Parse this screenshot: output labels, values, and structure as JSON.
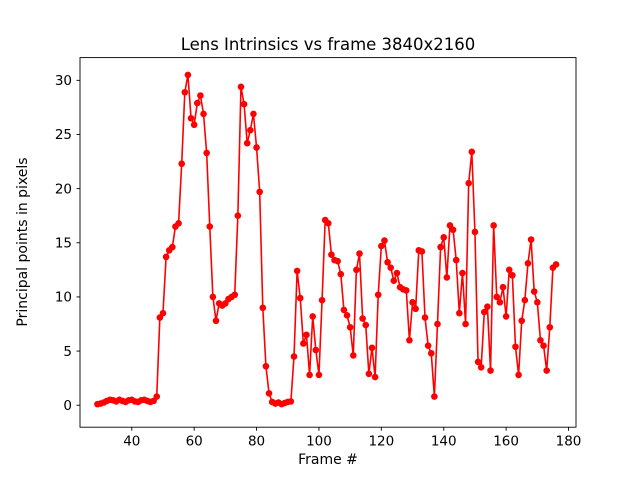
{
  "figure": {
    "background": "#ffffff",
    "plot_background": "#ffffff",
    "spine_color": "#000000",
    "tick_color": "#000000"
  },
  "chart_data": {
    "type": "line",
    "title": "Lens Intrinsics vs frame 3840x2160",
    "xlabel": "Frame #",
    "ylabel": "Principal points in pixels",
    "line_color": "#ff0000",
    "marker": "circle",
    "marker_color": "#ff0000",
    "grid": false,
    "legend_position": "none",
    "xlim": [
      23.4,
      182.4
    ],
    "ylim": [
      -2.03,
      32.1
    ],
    "xticks": [
      40,
      60,
      80,
      100,
      120,
      140,
      160,
      180
    ],
    "yticks": [
      0,
      5,
      10,
      15,
      20,
      25,
      30
    ],
    "x": [
      29,
      30,
      31,
      32,
      33,
      34,
      35,
      36,
      37,
      38,
      39,
      40,
      41,
      42,
      43,
      44,
      45,
      46,
      47,
      48,
      49,
      50,
      51,
      52,
      53,
      54,
      55,
      56,
      57,
      58,
      59,
      60,
      61,
      62,
      63,
      64,
      65,
      66,
      67,
      68,
      69,
      70,
      71,
      72,
      73,
      74,
      75,
      76,
      77,
      78,
      79,
      80,
      81,
      82,
      83,
      84,
      85,
      86,
      87,
      88,
      89,
      90,
      91,
      92,
      93,
      94,
      95,
      96,
      97,
      98,
      99,
      100,
      101,
      102,
      103,
      104,
      105,
      106,
      107,
      108,
      109,
      110,
      111,
      112,
      113,
      114,
      115,
      116,
      117,
      118,
      119,
      120,
      121,
      122,
      123,
      124,
      125,
      126,
      127,
      128,
      129,
      130,
      131,
      132,
      133,
      134,
      135,
      136,
      137,
      138,
      139,
      140,
      141,
      142,
      143,
      144,
      145,
      146,
      147,
      148,
      149,
      150,
      151,
      152,
      153,
      154,
      155,
      156,
      157,
      158,
      159,
      160,
      161,
      162,
      163,
      164,
      165,
      166,
      167,
      168,
      169,
      170,
      171,
      172,
      173,
      174,
      175,
      176
    ],
    "y": [
      0.1,
      0.15,
      0.25,
      0.4,
      0.5,
      0.45,
      0.35,
      0.5,
      0.4,
      0.3,
      0.45,
      0.5,
      0.35,
      0.3,
      0.45,
      0.5,
      0.4,
      0.3,
      0.4,
      0.8,
      8.1,
      8.5,
      13.7,
      14.3,
      14.6,
      16.5,
      16.8,
      22.3,
      28.9,
      30.5,
      26.5,
      25.9,
      27.9,
      28.6,
      26.9,
      23.3,
      16.5,
      10.0,
      7.8,
      9.4,
      9.2,
      9.4,
      9.8,
      10.0,
      10.2,
      17.5,
      29.4,
      27.8,
      24.2,
      25.4,
      26.9,
      23.8,
      19.7,
      9.0,
      3.6,
      1.1,
      0.3,
      0.15,
      0.25,
      0.1,
      0.2,
      0.3,
      0.35,
      4.5,
      12.4,
      9.9,
      5.7,
      6.5,
      2.8,
      8.2,
      5.1,
      2.8,
      9.7,
      17.1,
      16.8,
      13.9,
      13.4,
      13.3,
      12.1,
      8.8,
      8.3,
      7.2,
      4.6,
      12.5,
      14.0,
      8.0,
      7.4,
      2.9,
      5.3,
      2.6,
      10.2,
      14.7,
      15.2,
      13.2,
      12.7,
      11.5,
      12.2,
      10.9,
      10.7,
      10.6,
      6.0,
      9.5,
      8.9,
      14.3,
      14.2,
      8.1,
      5.5,
      4.8,
      0.8,
      7.5,
      14.6,
      15.5,
      11.8,
      16.6,
      16.2,
      13.4,
      8.5,
      12.2,
      7.5,
      20.5,
      23.4,
      16.0,
      4.0,
      3.5,
      8.6,
      9.1,
      3.2,
      16.6,
      10.0,
      9.5,
      10.9,
      8.2,
      12.5,
      12.0,
      5.4,
      2.8,
      7.8,
      9.7,
      13.1,
      15.3,
      10.5,
      9.5,
      6.0,
      5.5,
      3.2,
      7.2,
      12.7,
      13.0
    ]
  }
}
